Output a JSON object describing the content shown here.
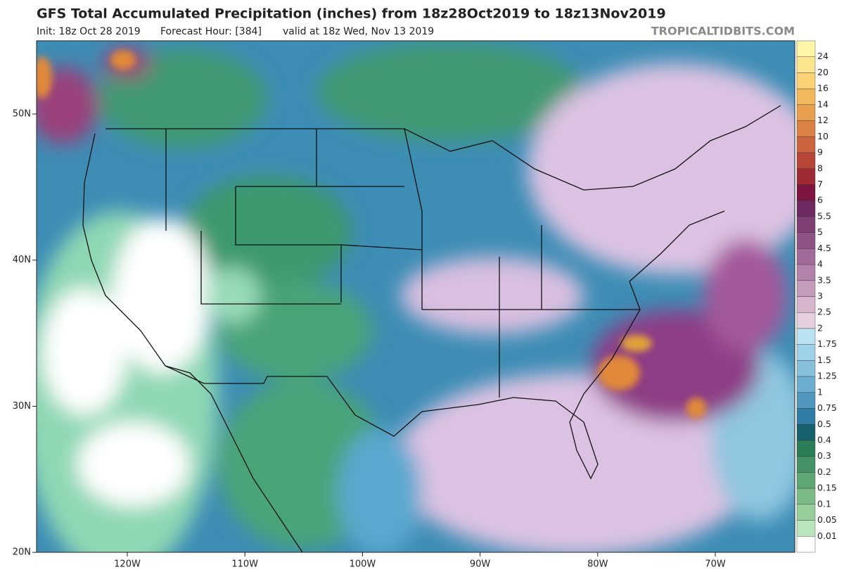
{
  "header": {
    "title": "GFS Total Accumulated Precipitation (inches) from 18z28Oct2019 to 18z13Nov2019",
    "init": "Init: 18z Oct 28 2019",
    "forecast_hour": "Forecast Hour: [384]",
    "valid": "valid at 18z Wed, Nov 13 2019",
    "credit": "TROPICALTIDBITS.COM"
  },
  "map": {
    "lat_labels": [
      "50N",
      "40N",
      "30N",
      "20N"
    ],
    "lon_labels": [
      "120W",
      "110W",
      "100W",
      "90W",
      "80W",
      "70W"
    ]
  },
  "colorbar": {
    "labels": [
      "24",
      "20",
      "16",
      "14",
      "12",
      "10",
      "9",
      "8",
      "7",
      "6",
      "5.5",
      "5",
      "4.5",
      "4",
      "3.5",
      "3",
      "2.5",
      "2",
      "1.75",
      "1.5",
      "1.25",
      "1",
      "0.75",
      "0.5",
      "0.4",
      "0.3",
      "0.2",
      "0.15",
      "0.1",
      "0.05",
      "0.01"
    ],
    "colors": [
      "#fdf6a8",
      "#fbe58e",
      "#f8d274",
      "#f2b95c",
      "#e9a04e",
      "#dc8146",
      "#cc6440",
      "#b74639",
      "#9e2a36",
      "#7d1540",
      "#6c2a60",
      "#7d3f74",
      "#8f5386",
      "#a16a98",
      "#b382aa",
      "#c59bbb",
      "#d6b5cd",
      "#e6d0df",
      "#b9e2f2",
      "#9fd2e8",
      "#86c0dc",
      "#6caecf",
      "#4f97bd",
      "#2f7ca6",
      "#15626e",
      "#2c7e58",
      "#459266",
      "#5ea675",
      "#7abb88",
      "#96cf9c",
      "#b9e6bd",
      "#ffffff"
    ]
  }
}
